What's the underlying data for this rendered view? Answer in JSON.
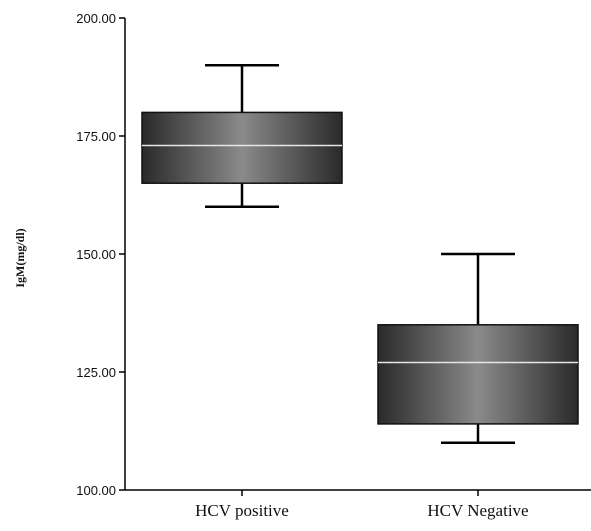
{
  "chart_data": {
    "type": "box",
    "title": "",
    "xlabel": "",
    "ylabel": "IgM(mg/dl)",
    "ylim": [
      100,
      200
    ],
    "yticks": [
      100,
      125,
      150,
      175,
      200
    ],
    "ytick_labels": [
      "100.00",
      "125.00",
      "150.00",
      "175.00",
      "200.00"
    ],
    "categories": [
      "HCV positive",
      "HCV Negative"
    ],
    "boxes": [
      {
        "category": "HCV positive",
        "min": 160,
        "q1": 165,
        "median": 173,
        "q3": 180,
        "max": 190
      },
      {
        "category": "HCV Negative",
        "min": 110,
        "q1": 114,
        "median": 127,
        "q3": 135,
        "max": 150
      }
    ],
    "grid": false,
    "colors": {
      "box_dark": "#303030",
      "box_light": "#8a8a8a",
      "median_line": "#e6e6e6",
      "axis": "#000000"
    }
  }
}
